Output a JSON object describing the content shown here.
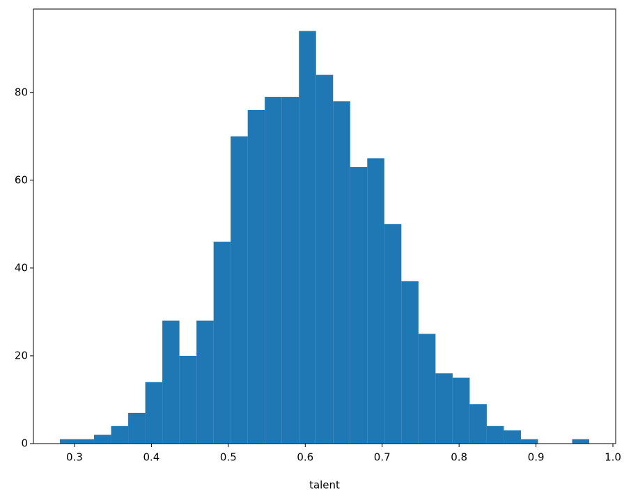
{
  "chart_data": {
    "type": "histogram",
    "xlabel": "talent",
    "bins": [
      0.281,
      0.3032,
      0.3254,
      0.3476,
      0.3698,
      0.392,
      0.4142,
      0.4364,
      0.4586,
      0.4808,
      0.503,
      0.5252,
      0.5474,
      0.5696,
      0.5918,
      0.614,
      0.6362,
      0.6584,
      0.6806,
      0.7028,
      0.725,
      0.7472,
      0.7694,
      0.7916,
      0.8138,
      0.836,
      0.8582,
      0.8804,
      0.9026,
      0.9248,
      0.947,
      0.9692
    ],
    "values": [
      1,
      1,
      2,
      4,
      7,
      14,
      28,
      20,
      28,
      46,
      70,
      76,
      79,
      79,
      94,
      84,
      78,
      63,
      65,
      50,
      37,
      25,
      16,
      15,
      9,
      4,
      3,
      1,
      0,
      0,
      1
    ],
    "color": "#1f77b4",
    "xlim": [
      0.2466,
      1.0036
    ],
    "ylim": [
      0,
      99
    ],
    "xticks": [
      0.3,
      0.4,
      0.5,
      0.6,
      0.7,
      0.8,
      0.9,
      {
        "value": 1,
        "label": "1.0"
      }
    ],
    "yticks": [
      0,
      20,
      40,
      60,
      80
    ]
  }
}
